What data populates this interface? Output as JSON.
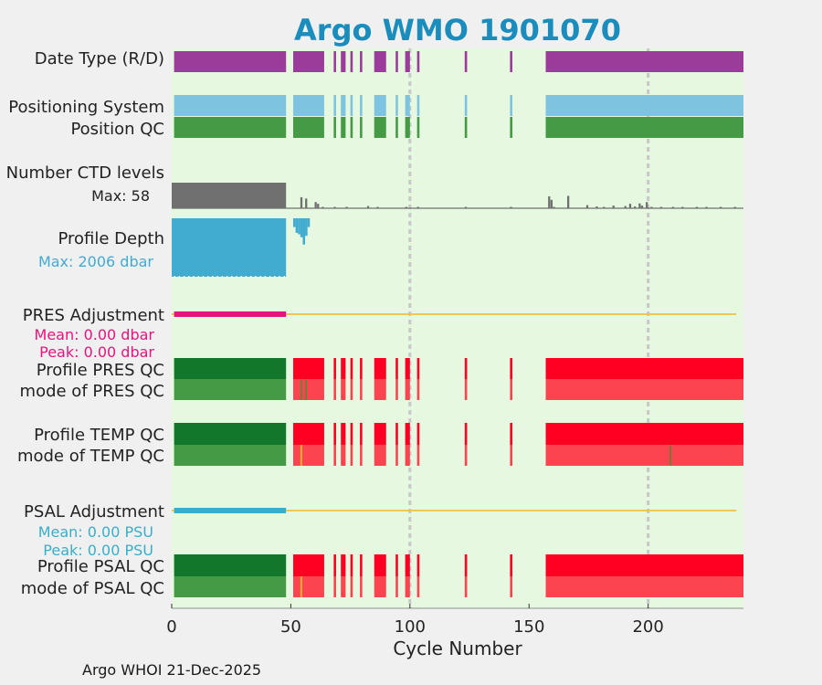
{
  "chart_data": {
    "type": "timeline",
    "title": "Argo WMO 1901070",
    "xlabel": "Cycle Number",
    "xlim": [
      0,
      240
    ],
    "xticks": [
      0,
      50,
      100,
      150,
      200
    ],
    "reference_lines": [
      100,
      200
    ],
    "profile_cycles": [
      [
        1,
        48
      ],
      [
        51,
        64
      ],
      [
        68,
        69
      ],
      [
        71,
        73
      ],
      [
        75,
        76
      ],
      [
        79,
        80
      ],
      [
        85,
        90
      ],
      [
        94,
        95
      ],
      [
        98,
        100
      ],
      [
        103,
        104
      ],
      [
        123,
        124
      ],
      [
        142,
        143
      ],
      [
        157,
        240
      ]
    ],
    "rows": {
      "date_type": {
        "label": "Date Type (R/D)",
        "color": "#9b3c9b"
      },
      "positioning_system": {
        "label": "Positioning System",
        "color": "#7ec3df"
      },
      "position_qc": {
        "label": "Position QC",
        "color": "#459a45"
      },
      "ctd_levels": {
        "label": "Number CTD levels",
        "max_label": "Max: 58",
        "max": 58,
        "bars": [
          [
            0,
            48,
            58
          ],
          [
            54,
            1,
            25
          ],
          [
            56,
            1,
            22
          ],
          [
            60,
            1,
            14
          ],
          [
            61,
            1,
            10
          ],
          [
            63,
            1,
            3
          ],
          [
            68,
            1,
            2
          ],
          [
            73,
            1,
            2
          ],
          [
            82,
            1,
            5
          ],
          [
            86,
            1,
            1
          ],
          [
            98,
            1,
            2
          ],
          [
            103,
            1,
            2
          ],
          [
            123,
            1,
            3
          ],
          [
            142,
            1,
            3
          ],
          [
            158,
            1,
            27
          ],
          [
            159,
            1,
            19
          ],
          [
            160,
            1,
            3
          ],
          [
            166,
            1,
            28
          ],
          [
            174,
            1,
            7
          ],
          [
            178,
            1,
            4
          ],
          [
            181,
            1,
            3
          ],
          [
            185,
            1,
            6
          ],
          [
            190,
            1,
            5
          ],
          [
            192,
            1,
            10
          ],
          [
            194,
            1,
            4
          ],
          [
            196,
            1,
            11
          ],
          [
            197,
            1,
            6
          ],
          [
            199,
            1,
            14
          ],
          [
            201,
            1,
            3
          ],
          [
            205,
            1,
            2
          ],
          [
            210,
            1,
            1
          ],
          [
            214,
            1,
            1
          ],
          [
            220,
            1,
            1
          ],
          [
            224,
            1,
            1
          ],
          [
            230,
            1,
            1
          ],
          [
            236,
            1,
            1
          ]
        ]
      },
      "profile_depth": {
        "label": "Profile Depth",
        "max_label": "Max: 2006 dbar",
        "max": 2006,
        "bars": [
          [
            0,
            48,
            2006
          ],
          [
            51,
            1,
            300
          ],
          [
            52,
            1,
            500
          ],
          [
            53,
            1,
            550
          ],
          [
            54,
            1,
            650
          ],
          [
            55,
            1,
            900
          ],
          [
            56,
            1,
            600
          ],
          [
            57,
            1,
            300
          ]
        ]
      },
      "pres_adjustment": {
        "label": "PRES Adjustment",
        "mean_label": "Mean: 0.00 dbar",
        "peak_label": "Peak: 0.00 dbar",
        "thick_until": 48,
        "line_end": 237
      },
      "profile_pres_qc": {
        "label": "Profile PRES QC"
      },
      "mode_pres_qc": {
        "label": "mode of PRES QC",
        "extra_marks": [
          [
            54,
            1,
            "#6f7f36"
          ],
          [
            56,
            1,
            "#6f7f36"
          ]
        ]
      },
      "profile_temp_qc": {
        "label": "Profile TEMP QC"
      },
      "mode_temp_qc": {
        "label": "mode of TEMP QC",
        "extra_marks": [
          [
            54,
            1,
            "#e8b030"
          ],
          [
            209,
            1,
            "#6f7f36"
          ]
        ]
      },
      "psal_adjustment": {
        "label": "PSAL Adjustment",
        "mean_label": "Mean: 0.00 PSU",
        "peak_label": "Peak: 0.00 PSU",
        "thick_until": 48,
        "line_end": 237
      },
      "profile_psal_qc": {
        "label": "Profile PSAL QC"
      },
      "mode_psal_qc": {
        "label": "mode of PSAL QC",
        "extra_marks": [
          [
            54,
            1,
            "#e8b030"
          ]
        ]
      }
    }
  },
  "colors": {
    "background_plot": "#e6f8e0",
    "title": "#1b8dbd",
    "qc_good_dark": "#13772b",
    "qc_good_light": "#459a45",
    "qc_bad_dark": "#ff0022",
    "qc_bad_light": "#fc4450",
    "ctd": "#707070",
    "depth": "#42abd0",
    "pres": "#e8137d",
    "psal": "#3aaec8",
    "adjust_line": "#eec04a"
  },
  "footer": "Argo WHOI 21-Dec-2025"
}
